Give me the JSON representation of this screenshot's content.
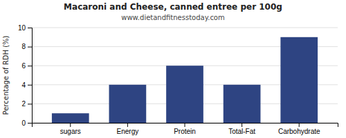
{
  "chart_data": {
    "type": "bar",
    "title": "Macaroni and Cheese, canned entree per 100g",
    "subtitle": "www.dietandfitnesstoday.com",
    "categories": [
      "sugars",
      "Energy",
      "Protein",
      "Total-Fat",
      "Carbohydrate"
    ],
    "values": [
      1,
      4,
      6,
      4,
      9
    ],
    "color": "#2e4482",
    "ylabel": "Percentage of RDH (%)",
    "ylim": [
      0,
      10
    ],
    "yticks": [
      0,
      2,
      4,
      6,
      8,
      10
    ],
    "grid": true
  }
}
